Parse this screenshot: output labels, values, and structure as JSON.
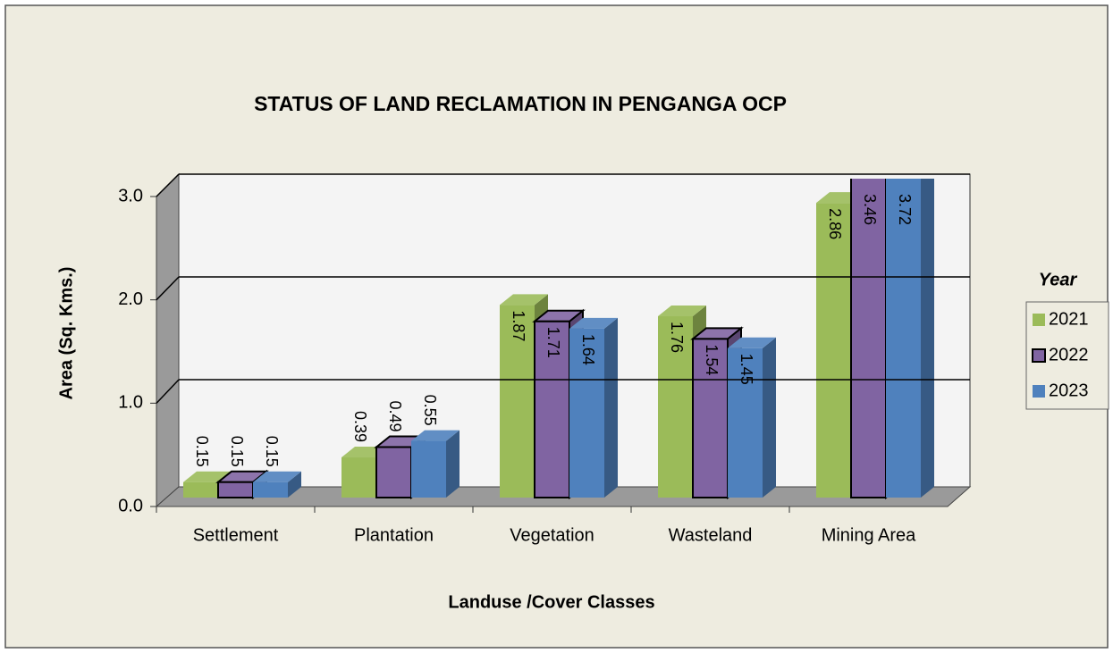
{
  "chart_data": {
    "type": "bar3d",
    "title": "STATUS OF LAND RECLAMATION IN PENGANGA OCP",
    "xlabel": "Landuse /Cover Classes",
    "ylabel": "Area (Sq. Kms.)",
    "legend_title": "Year",
    "legend": "right",
    "grid": true,
    "categories": [
      "Settlement",
      "Plantation",
      "Vegetation",
      "Wasteland",
      "Mining Area"
    ],
    "series": [
      {
        "name": "2021",
        "color": "#9bbb59",
        "values": [
          0.15,
          0.39,
          1.87,
          1.76,
          2.86
        ]
      },
      {
        "name": "2022",
        "color": "#8064a2",
        "values": [
          0.15,
          0.49,
          1.71,
          1.54,
          3.46
        ]
      },
      {
        "name": "2023",
        "color": "#4f81bd",
        "values": [
          0.15,
          0.55,
          1.64,
          1.45,
          3.72
        ]
      }
    ],
    "ylim": [
      0,
      3
    ],
    "yticks": [
      {
        "value": 0,
        "label": "0.0"
      },
      {
        "value": 1,
        "label": "1.0"
      },
      {
        "value": 2,
        "label": "2.0"
      },
      {
        "value": 3,
        "label": "3.0"
      }
    ]
  }
}
